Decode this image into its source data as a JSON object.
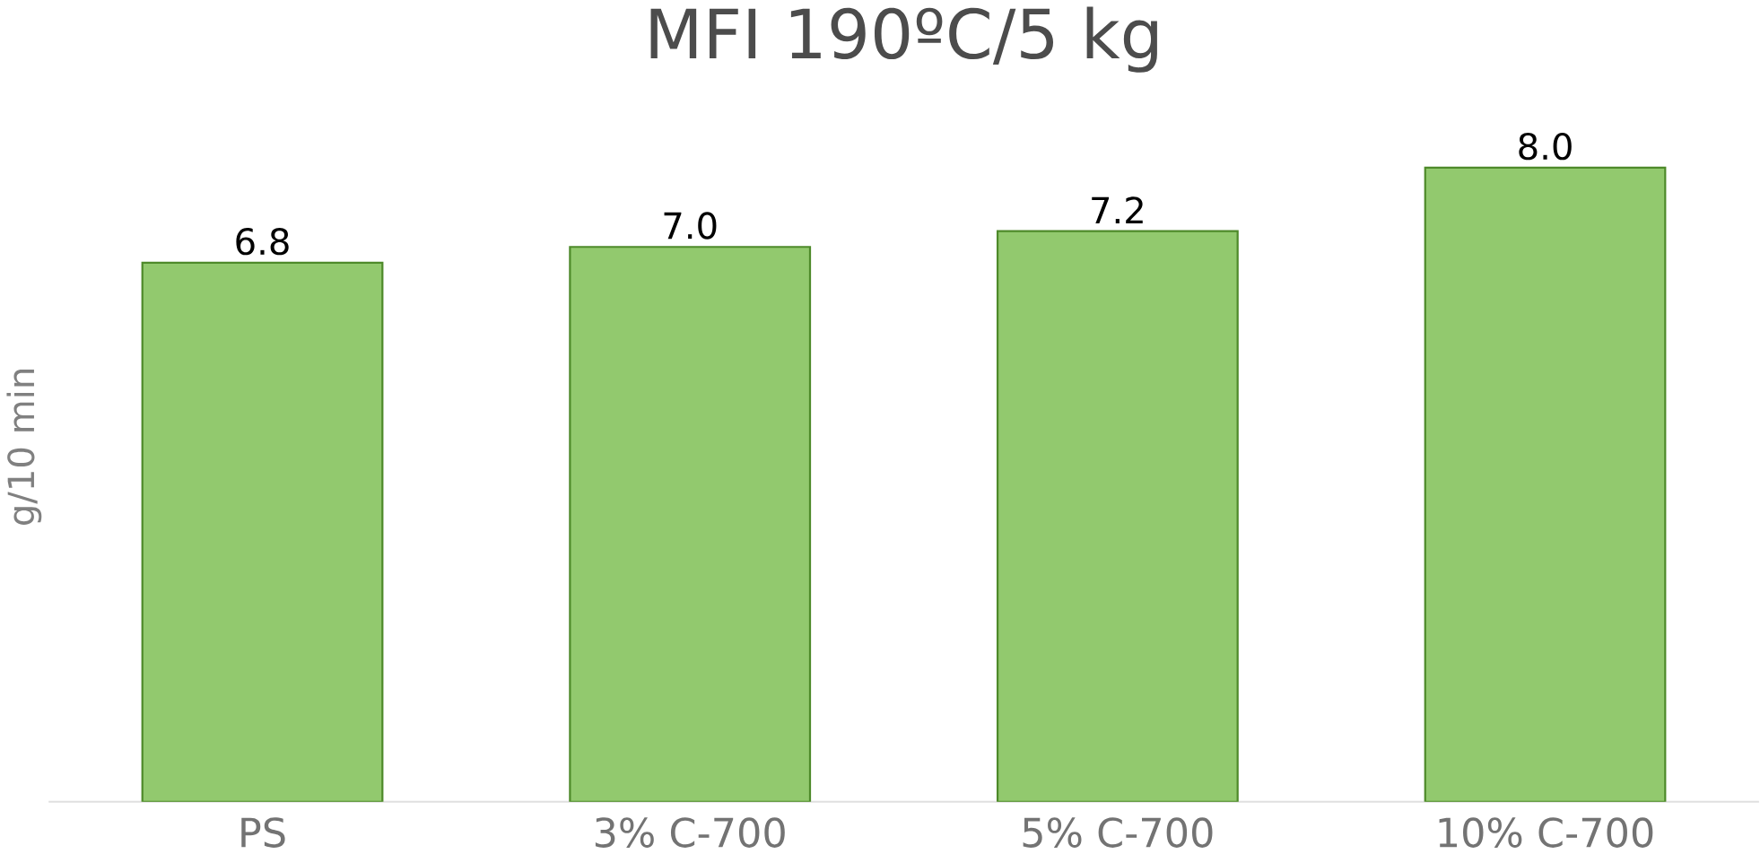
{
  "chart_data": {
    "type": "bar",
    "title": "MFI 190ºC/5 kg",
    "ylabel": "g/10 min",
    "categories": [
      "PS",
      "3% C-700",
      "5% C-700",
      "10% C-700"
    ],
    "values": [
      6.8,
      7.0,
      7.2,
      8.0
    ],
    "value_labels": [
      "6.8",
      "7.0",
      "7.2",
      "8.0"
    ],
    "color": "#92c96e",
    "tick_labels": "x"
  }
}
